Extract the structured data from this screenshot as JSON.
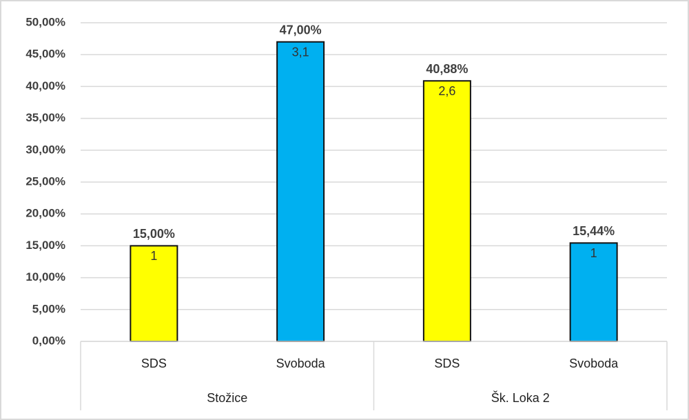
{
  "chart_data": {
    "type": "bar",
    "groups": [
      {
        "name": "Stožice",
        "categories": [
          "SDS",
          "Svoboda"
        ],
        "values": [
          15,
          47
        ],
        "value_labels": [
          "15,00%",
          "47,00%"
        ],
        "annotations": [
          "1",
          "3,1"
        ],
        "colors": [
          "#ffff00",
          "#00b0f0"
        ]
      },
      {
        "name": "Šk. Loka 2",
        "categories": [
          "SDS",
          "Svoboda"
        ],
        "values": [
          40.88,
          15.44
        ],
        "value_labels": [
          "40,88%",
          "15,44%"
        ],
        "annotations": [
          "2,6",
          "1"
        ],
        "colors": [
          "#ffff00",
          "#00b0f0"
        ]
      }
    ],
    "ylim": [
      0,
      50
    ],
    "yticks": [
      {
        "value": 0,
        "label": "0,00%"
      },
      {
        "value": 5,
        "label": "5,00%"
      },
      {
        "value": 10,
        "label": "10,00%"
      },
      {
        "value": 15,
        "label": "15,00%"
      },
      {
        "value": 20,
        "label": "20,00%"
      },
      {
        "value": 25,
        "label": "25,00%"
      },
      {
        "value": 30,
        "label": "30,00%"
      },
      {
        "value": 35,
        "label": "35,00%"
      },
      {
        "value": 40,
        "label": "40,00%"
      },
      {
        "value": 45,
        "label": "45,00%"
      },
      {
        "value": 50,
        "label": "50,00%"
      }
    ],
    "grid": true
  }
}
